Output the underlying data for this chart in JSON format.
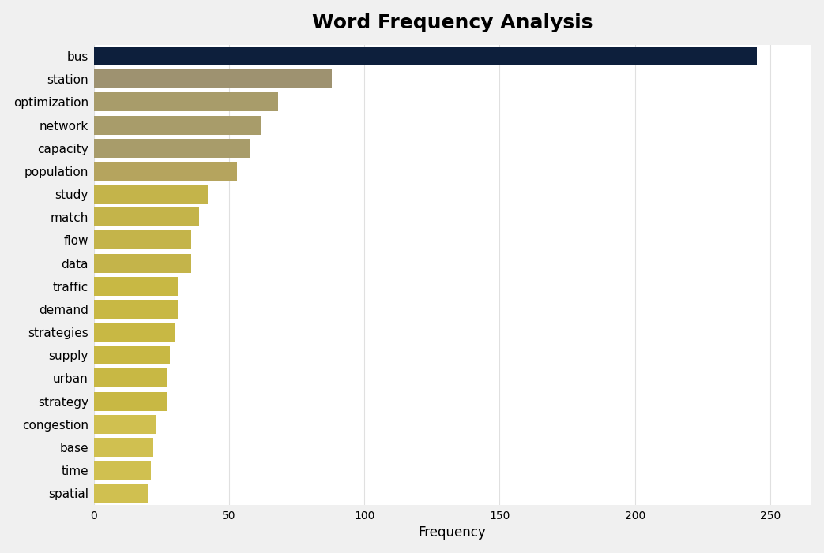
{
  "title": "Word Frequency Analysis",
  "xlabel": "Frequency",
  "categories": [
    "bus",
    "station",
    "optimization",
    "network",
    "capacity",
    "population",
    "study",
    "match",
    "flow",
    "data",
    "traffic",
    "demand",
    "strategies",
    "supply",
    "urban",
    "strategy",
    "congestion",
    "base",
    "time",
    "spatial"
  ],
  "values": [
    245,
    88,
    68,
    62,
    58,
    53,
    42,
    39,
    36,
    36,
    31,
    31,
    30,
    28,
    27,
    27,
    23,
    22,
    21,
    20
  ],
  "bar_colors": [
    "#0d1f3c",
    "#9e9270",
    "#a89c6a",
    "#a89c6a",
    "#a89c6a",
    "#b5a45e",
    "#c4b44a",
    "#c4b44a",
    "#c4b44a",
    "#c4b44a",
    "#c8b844",
    "#c8b844",
    "#c8b844",
    "#c8b844",
    "#c8b844",
    "#c8b844",
    "#d0c050",
    "#d0c050",
    "#d0c050",
    "#d0c050"
  ],
  "figure_bg_color": "#f0f0f0",
  "plot_bg_color": "#ffffff",
  "title_fontsize": 18,
  "label_fontsize": 11,
  "axis_label_fontsize": 12,
  "xlim": [
    0,
    265
  ],
  "xtick_interval": 50,
  "bar_height": 0.82,
  "grid_color": "#e0e0e0",
  "grid_linewidth": 0.8
}
